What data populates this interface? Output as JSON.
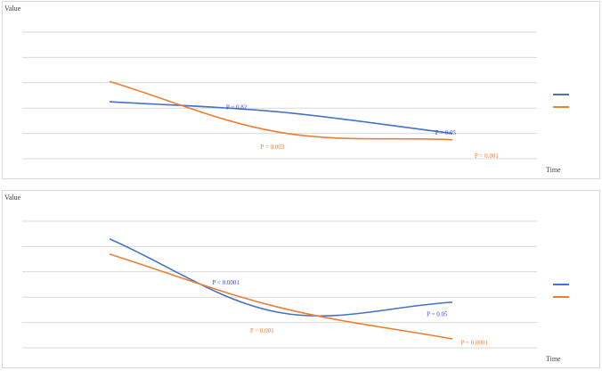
{
  "chart_data": [
    {
      "type": "line",
      "ylabel": "Value",
      "xlabel": "Time",
      "x": [
        1,
        2,
        3
      ],
      "ylim": [
        0,
        5
      ],
      "grid": true,
      "legend": "right",
      "series": [
        {
          "color": "#4472c4",
          "values": [
            2.25,
            1.85,
            1.0
          ]
        },
        {
          "color": "#ed7d31",
          "values": [
            3.05,
            1.05,
            0.75
          ]
        }
      ],
      "annotations": [
        {
          "text": "P = 0.82",
          "color": "#3f48cc",
          "x": 1.68,
          "y": 1.95
        },
        {
          "text": "P = 0.05",
          "color": "#3f48cc",
          "x": 2.9,
          "y": 0.95
        },
        {
          "text": "P = 0.003",
          "color": "#ed7d31",
          "x": 1.88,
          "y": 0.38
        },
        {
          "text": "P = 0.001",
          "color": "#ed7d31",
          "x": 3.13,
          "y": 0.03
        }
      ]
    },
    {
      "type": "line",
      "ylabel": "Value",
      "xlabel": "Time",
      "x": [
        1,
        2,
        3
      ],
      "ylim": [
        0,
        5
      ],
      "grid": true,
      "legend": "right",
      "series": [
        {
          "color": "#4472c4",
          "values": [
            4.3,
            1.4,
            1.8
          ]
        },
        {
          "color": "#ed7d31",
          "values": [
            3.7,
            1.6,
            0.35
          ]
        }
      ],
      "annotations": [
        {
          "text": "P < 0.0001",
          "color": "#3f48cc",
          "x": 1.6,
          "y": 2.5
        },
        {
          "text": "P = 0.05",
          "color": "#3f48cc",
          "x": 2.85,
          "y": 1.25
        },
        {
          "text": "P = 0.001",
          "color": "#ed7d31",
          "x": 1.82,
          "y": 0.6
        },
        {
          "text": "P = 0.0001",
          "color": "#ed7d31",
          "x": 3.05,
          "y": 0.12
        }
      ]
    }
  ]
}
